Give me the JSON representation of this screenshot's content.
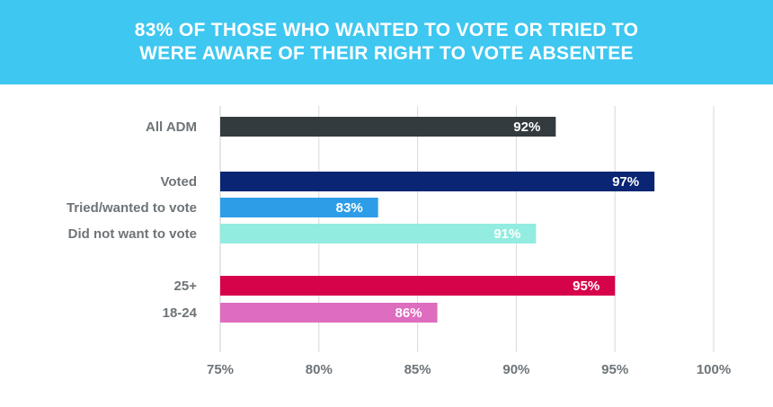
{
  "header": {
    "title_line1": "83% OF THOSE WHO WANTED TO VOTE OR TRIED TO",
    "title_line2": "WERE AWARE OF THEIR RIGHT TO VOTE ABSENTEE",
    "background_color": "#3ec7f0"
  },
  "chart_data": {
    "type": "bar",
    "orientation": "horizontal",
    "title": "83% OF THOSE WHO WANTED TO VOTE OR TRIED TO WERE AWARE OF THEIR RIGHT TO VOTE ABSENTEE",
    "xlabel": "",
    "ylabel": "",
    "xlim": [
      75,
      100
    ],
    "xticks": [
      75,
      80,
      85,
      90,
      95,
      100
    ],
    "xtick_labels": [
      "75%",
      "80%",
      "85%",
      "90%",
      "95%",
      "100%"
    ],
    "grid": "vertical",
    "legend": "none",
    "categories": [
      "All ADM",
      "Voted",
      "Tried/wanted to vote",
      "Did not want to vote",
      "25+",
      "18-24"
    ],
    "groups": [
      [
        0
      ],
      [
        1,
        2,
        3
      ],
      [
        4,
        5
      ]
    ],
    "values": [
      92,
      97,
      83,
      91,
      95,
      86
    ],
    "value_labels": [
      "92%",
      "97%",
      "83%",
      "91%",
      "95%",
      "86%"
    ],
    "colors": [
      "#333b3f",
      "#0a2573",
      "#2e9de8",
      "#93ece0",
      "#d6034a",
      "#de6cbf"
    ]
  }
}
